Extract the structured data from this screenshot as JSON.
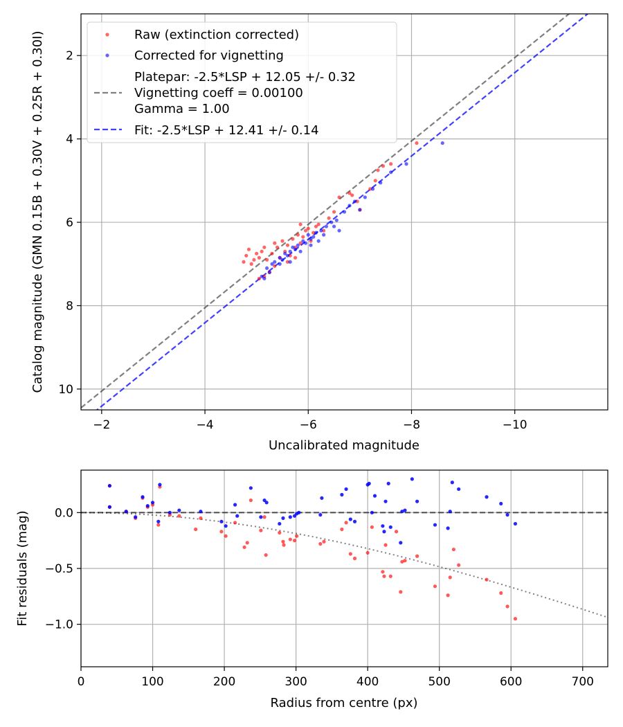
{
  "colors": {
    "raw": "#ff0000",
    "corrected": "#0000ff",
    "platepar": "#000000",
    "fit": "#0000ff",
    "grid": "#b0b0b0"
  },
  "chart_data": [
    {
      "type": "scatter",
      "name": "magnitude-calibration",
      "xlabel": "Uncalibrated magnitude",
      "ylabel": "Catalog magnitude (GMN 0.15B + 0.30V + 0.25R + 0.30I)",
      "xlim": [
        -1.6,
        -11.8
      ],
      "ylim": [
        10.5,
        1.0
      ],
      "xticks": [
        -2,
        -4,
        -6,
        -8,
        -10
      ],
      "xtick_labels": [
        "−2",
        "−4",
        "−6",
        "−8",
        "−10"
      ],
      "yticks": [
        2,
        4,
        6,
        8,
        10
      ],
      "ytick_labels": [
        "2",
        "4",
        "6",
        "8",
        "10"
      ],
      "grid": true,
      "legend_position": "top-left",
      "lines": [
        {
          "name": "platepar",
          "style": "dashed",
          "color": "#000000",
          "alpha": 0.5,
          "slope": 1,
          "intercept": 12.05,
          "label_lines": [
            "Platepar: -2.5*LSP + 12.05 +/- 0.32",
            "Vignetting coeff = 0.00100",
            "Gamma = 1.00"
          ]
        },
        {
          "name": "fit",
          "style": "dashed",
          "color": "#0000ff",
          "alpha": 0.75,
          "slope": 1,
          "intercept": 12.41,
          "label_lines": [
            "Fit: -2.5*LSP + 12.41 +/- 0.14"
          ]
        }
      ],
      "series": [
        {
          "name": "Raw (extinction corrected)",
          "color": "#ff0000",
          "points": [
            [
              -4.75,
              6.95
            ],
            [
              -4.8,
              6.8
            ],
            [
              -4.85,
              6.65
            ],
            [
              -4.9,
              7.0
            ],
            [
              -4.95,
              6.9
            ],
            [
              -5.0,
              6.75
            ],
            [
              -5.05,
              6.85
            ],
            [
              -5.1,
              6.7
            ],
            [
              -5.15,
              6.6
            ],
            [
              -5.2,
              6.9
            ],
            [
              -5.3,
              6.75
            ],
            [
              -5.35,
              6.5
            ],
            [
              -5.4,
              6.6
            ],
            [
              -5.45,
              6.85
            ],
            [
              -5.5,
              6.45
            ],
            [
              -5.55,
              6.7
            ],
            [
              -5.6,
              6.55
            ],
            [
              -5.65,
              6.8
            ],
            [
              -5.7,
              6.4
            ],
            [
              -5.75,
              6.6
            ],
            [
              -5.8,
              6.3
            ],
            [
              -5.85,
              6.5
            ],
            [
              -5.85,
              6.05
            ],
            [
              -5.9,
              6.35
            ],
            [
              -5.95,
              6.2
            ],
            [
              -6.0,
              6.15
            ],
            [
              -6.05,
              6.45
            ],
            [
              -6.1,
              6.25
            ],
            [
              -6.15,
              6.1
            ],
            [
              -6.2,
              6.05
            ],
            [
              -6.3,
              6.2
            ],
            [
              -6.4,
              5.9
            ],
            [
              -6.5,
              5.75
            ],
            [
              -6.6,
              5.4
            ],
            [
              -6.8,
              5.3
            ],
            [
              -6.85,
              5.35
            ],
            [
              -6.95,
              5.5
            ],
            [
              -7.0,
              5.7
            ],
            [
              -7.2,
              5.2
            ],
            [
              -7.3,
              5.0
            ],
            [
              -7.35,
              4.75
            ],
            [
              -7.6,
              4.6
            ],
            [
              -7.45,
              4.65
            ],
            [
              -8.1,
              4.1
            ],
            [
              -5.15,
              7.3
            ],
            [
              -5.25,
              7.2
            ],
            [
              -5.6,
              6.95
            ],
            [
              -5.35,
              7.05
            ],
            [
              -5.05,
              7.35
            ],
            [
              -5.75,
              6.85
            ]
          ]
        },
        {
          "name": "Corrected for vignetting",
          "color": "#0000ff",
          "points": [
            [
              -5.1,
              7.3
            ],
            [
              -5.15,
              7.35
            ],
            [
              -5.2,
              7.1
            ],
            [
              -5.3,
              7.0
            ],
            [
              -5.35,
              6.95
            ],
            [
              -5.45,
              6.85
            ],
            [
              -5.5,
              6.9
            ],
            [
              -5.55,
              6.75
            ],
            [
              -5.6,
              6.8
            ],
            [
              -5.65,
              6.7
            ],
            [
              -5.7,
              6.6
            ],
            [
              -5.75,
              6.65
            ],
            [
              -5.8,
              6.55
            ],
            [
              -5.85,
              6.7
            ],
            [
              -5.9,
              6.45
            ],
            [
              -5.95,
              6.5
            ],
            [
              -6.0,
              6.3
            ],
            [
              -6.05,
              6.4
            ],
            [
              -6.1,
              6.35
            ],
            [
              -6.15,
              6.25
            ],
            [
              -6.2,
              6.45
            ],
            [
              -6.25,
              6.2
            ],
            [
              -6.3,
              6.3
            ],
            [
              -6.35,
              6.1
            ],
            [
              -6.45,
              6.0
            ],
            [
              -6.5,
              6.1
            ],
            [
              -6.55,
              5.95
            ],
            [
              -6.6,
              6.2
            ],
            [
              -6.7,
              5.75
            ],
            [
              -6.8,
              5.6
            ],
            [
              -6.9,
              5.5
            ],
            [
              -7.0,
              5.7
            ],
            [
              -7.1,
              5.4
            ],
            [
              -7.25,
              5.2
            ],
            [
              -7.4,
              5.05
            ],
            [
              -7.6,
              4.8
            ],
            [
              -7.9,
              4.6
            ],
            [
              -8.6,
              4.1
            ],
            [
              -5.45,
              7.0
            ],
            [
              -5.65,
              6.95
            ],
            [
              -6.05,
              6.55
            ],
            [
              -5.25,
              7.2
            ]
          ]
        }
      ]
    },
    {
      "type": "scatter",
      "name": "fit-residuals",
      "xlabel": "Radius from centre (px)",
      "ylabel": "Fit residuals (mag)",
      "xlim": [
        0,
        735
      ],
      "ylim": [
        -1.38,
        0.38
      ],
      "xticks": [
        0,
        100,
        200,
        300,
        400,
        500,
        600,
        700
      ],
      "xtick_labels": [
        "0",
        "100",
        "200",
        "300",
        "400",
        "500",
        "600",
        "700"
      ],
      "yticks": [
        0.0,
        -0.5,
        -1.0
      ],
      "ytick_labels": [
        "0.0",
        "−0.5",
        "−1.0"
      ],
      "grid": true,
      "reference_lines": [
        {
          "name": "zero-line",
          "style": "dashed",
          "color": "#000000",
          "value": 0.0
        },
        {
          "name": "vignetting-model",
          "style": "dotted",
          "color": "#000000",
          "curve": "vignetting",
          "coeff": 0.001
        }
      ],
      "series": [
        {
          "name": "raw-residuals",
          "color": "#ff0000",
          "points": [
            [
              40,
              0.24
            ],
            [
              40,
              0.05
            ],
            [
              63,
              0.01
            ],
            [
              76,
              -0.05
            ],
            [
              86,
              0.13
            ],
            [
              93,
              0.05
            ],
            [
              100,
              0.07
            ],
            [
              108,
              -0.11
            ],
            [
              110,
              0.23
            ],
            [
              124,
              -0.02
            ],
            [
              137,
              -0.03
            ],
            [
              160,
              -0.15
            ],
            [
              167,
              -0.05
            ],
            [
              196,
              -0.17
            ],
            [
              202,
              -0.21
            ],
            [
              215,
              -0.09
            ],
            [
              228,
              -0.31
            ],
            [
              232,
              -0.27
            ],
            [
              237,
              0.11
            ],
            [
              251,
              -0.16
            ],
            [
              256,
              -0.04
            ],
            [
              258,
              -0.38
            ],
            [
              277,
              -0.18
            ],
            [
              282,
              -0.26
            ],
            [
              283,
              -0.29
            ],
            [
              292,
              -0.24
            ],
            [
              298,
              -0.25
            ],
            [
              301,
              -0.21
            ],
            [
              334,
              -0.28
            ],
            [
              339,
              -0.26
            ],
            [
              364,
              -0.15
            ],
            [
              370,
              -0.09
            ],
            [
              376,
              -0.37
            ],
            [
              382,
              -0.41
            ],
            [
              400,
              -0.36
            ],
            [
              406,
              -0.13
            ],
            [
              421,
              -0.53
            ],
            [
              423,
              -0.57
            ],
            [
              425,
              -0.29
            ],
            [
              432,
              -0.57
            ],
            [
              440,
              -0.17
            ],
            [
              446,
              -0.71
            ],
            [
              448,
              -0.44
            ],
            [
              452,
              -0.43
            ],
            [
              469,
              -0.39
            ],
            [
              494,
              -0.66
            ],
            [
              512,
              -0.74
            ],
            [
              515,
              -0.58
            ],
            [
              520,
              -0.33
            ],
            [
              527,
              -0.47
            ],
            [
              566,
              -0.6
            ],
            [
              586,
              -0.72
            ],
            [
              595,
              -0.84
            ],
            [
              606,
              -0.95
            ]
          ]
        },
        {
          "name": "corrected-residuals",
          "color": "#0000ff",
          "points": [
            [
              40,
              0.24
            ],
            [
              40,
              0.05
            ],
            [
              63,
              0.01
            ],
            [
              76,
              -0.04
            ],
            [
              86,
              0.14
            ],
            [
              93,
              0.06
            ],
            [
              100,
              0.09
            ],
            [
              108,
              -0.08
            ],
            [
              110,
              0.25
            ],
            [
              124,
              0.0
            ],
            [
              137,
              0.02
            ],
            [
              167,
              0.01
            ],
            [
              196,
              -0.08
            ],
            [
              202,
              -0.12
            ],
            [
              215,
              0.07
            ],
            [
              218,
              -0.03
            ],
            [
              237,
              0.22
            ],
            [
              251,
              -0.04
            ],
            [
              256,
              0.11
            ],
            [
              259,
              0.09
            ],
            [
              277,
              -0.1
            ],
            [
              282,
              -0.05
            ],
            [
              292,
              -0.04
            ],
            [
              298,
              -0.03
            ],
            [
              301,
              -0.01
            ],
            [
              304,
              0.0
            ],
            [
              334,
              -0.02
            ],
            [
              336,
              0.13
            ],
            [
              364,
              0.16
            ],
            [
              370,
              0.21
            ],
            [
              376,
              -0.06
            ],
            [
              382,
              -0.08
            ],
            [
              400,
              0.25
            ],
            [
              402,
              0.26
            ],
            [
              406,
              0.0
            ],
            [
              410,
              0.15
            ],
            [
              421,
              -0.12
            ],
            [
              423,
              -0.17
            ],
            [
              425,
              0.1
            ],
            [
              429,
              0.26
            ],
            [
              432,
              -0.13
            ],
            [
              446,
              -0.27
            ],
            [
              448,
              0.01
            ],
            [
              452,
              0.02
            ],
            [
              462,
              0.3
            ],
            [
              469,
              0.1
            ],
            [
              494,
              -0.11
            ],
            [
              512,
              -0.14
            ],
            [
              515,
              0.01
            ],
            [
              518,
              0.27
            ],
            [
              527,
              0.21
            ],
            [
              566,
              0.14
            ],
            [
              586,
              0.08
            ],
            [
              595,
              -0.02
            ],
            [
              606,
              -0.1
            ]
          ]
        }
      ]
    }
  ]
}
